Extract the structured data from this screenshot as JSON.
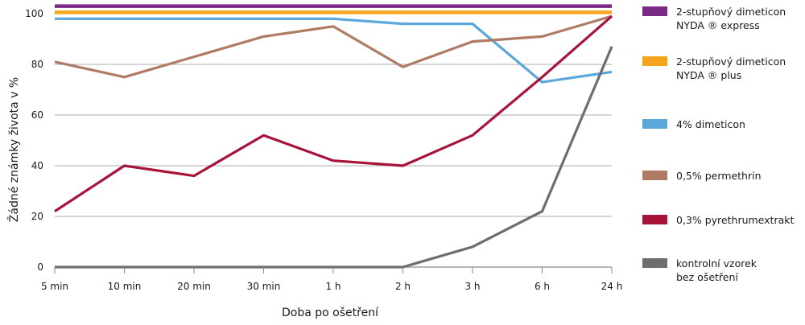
{
  "chart_data": {
    "type": "line",
    "xlabel": "Doba  po  ošetření",
    "ylabel": "Žádné  známky  života  v %",
    "categories": [
      "5 min",
      "10 min",
      "20 min",
      "30 min",
      "1 h",
      "2 h",
      "3 h",
      "6 h",
      "24 h"
    ],
    "y_ticks": [
      "0",
      "20",
      "40",
      "60",
      "80",
      "100"
    ],
    "ylim": [
      0,
      105
    ],
    "grid": "horizontal",
    "legend_position": "right",
    "series": [
      {
        "name": "2-stupňový  dimeticon NYDA ® express",
        "legend_lines": [
          "2-stupňový   dimeticon",
          "NYDA ® express"
        ],
        "color": "#7b2a86",
        "values": [
          103,
          103,
          103,
          103,
          103,
          103,
          103,
          103,
          103
        ]
      },
      {
        "name": "2-stupňový  dimeticon NYDA ® plus",
        "legend_lines": [
          "2-stupňový   dimeticon",
          "NYDA ® plus"
        ],
        "color": "#f6a41c",
        "values": [
          100.5,
          100.5,
          100.5,
          100.5,
          100.5,
          100.5,
          100.5,
          100.5,
          100.5
        ]
      },
      {
        "name": "4%  dimeticon",
        "legend_lines": [
          "4%  dimeticon"
        ],
        "color": "#5aa7dc",
        "values": [
          98,
          98,
          98,
          98,
          98,
          96,
          96,
          73,
          77
        ]
      },
      {
        "name": "0,5%  permethrin",
        "legend_lines": [
          "0,5%  permethrin"
        ],
        "color": "#b07b64",
        "values": [
          81,
          75,
          83,
          91,
          95,
          79,
          89,
          91,
          99
        ]
      },
      {
        "name": "0,3%  pyrethrumextrakt",
        "legend_lines": [
          "0,3%  pyrethrumextrakt"
        ],
        "color": "#a8133a",
        "values": [
          22,
          40,
          36,
          52,
          42,
          40,
          52,
          75,
          99
        ]
      },
      {
        "name": "kontrolní  vzorek bez ošetření",
        "legend_lines": [
          "kontrolní    vzorek",
          "bez  ošetření"
        ],
        "color": "#6d6e70",
        "values": [
          0,
          0,
          0,
          0,
          0,
          0,
          8,
          22,
          87
        ]
      }
    ]
  }
}
